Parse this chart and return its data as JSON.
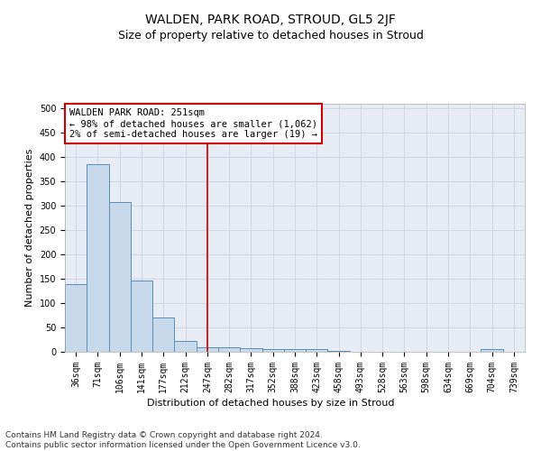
{
  "title": "WALDEN, PARK ROAD, STROUD, GL5 2JF",
  "subtitle": "Size of property relative to detached houses in Stroud",
  "xlabel": "Distribution of detached houses by size in Stroud",
  "ylabel": "Number of detached properties",
  "footer_line1": "Contains HM Land Registry data © Crown copyright and database right 2024.",
  "footer_line2": "Contains public sector information licensed under the Open Government Licence v3.0.",
  "annotation_title": "WALDEN PARK ROAD: 251sqm",
  "annotation_line2": "← 98% of detached houses are smaller (1,062)",
  "annotation_line3": "2% of semi-detached houses are larger (19) →",
  "bar_labels": [
    "36sqm",
    "71sqm",
    "106sqm",
    "141sqm",
    "177sqm",
    "212sqm",
    "247sqm",
    "282sqm",
    "317sqm",
    "352sqm",
    "388sqm",
    "423sqm",
    "458sqm",
    "493sqm",
    "528sqm",
    "563sqm",
    "598sqm",
    "634sqm",
    "669sqm",
    "704sqm",
    "739sqm"
  ],
  "bar_values": [
    140,
    385,
    307,
    147,
    70,
    23,
    10,
    10,
    8,
    5,
    5,
    5,
    1,
    0,
    0,
    0,
    0,
    0,
    0,
    5,
    0
  ],
  "bar_color": "#c9d9ec",
  "bar_edge_color": "#5b8db8",
  "vline_x": 6,
  "vline_color": "#cc0000",
  "ylim": [
    0,
    510
  ],
  "yticks": [
    0,
    50,
    100,
    150,
    200,
    250,
    300,
    350,
    400,
    450,
    500
  ],
  "grid_color": "#d0d8e8",
  "bg_color": "#e8edf5",
  "annotation_box_color": "#cc0000",
  "title_fontsize": 10,
  "subtitle_fontsize": 9,
  "axis_label_fontsize": 8,
  "tick_fontsize": 7,
  "footer_fontsize": 6.5,
  "annotation_fontsize": 7.5
}
